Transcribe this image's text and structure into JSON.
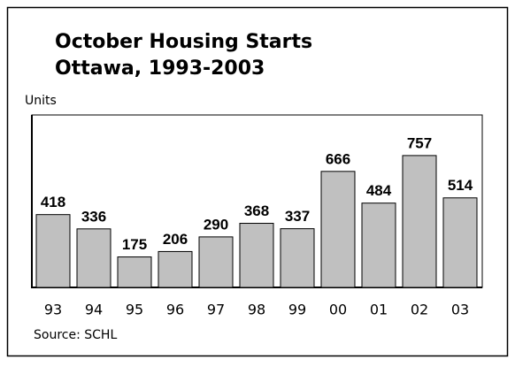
{
  "chart_data": {
    "type": "bar",
    "title": "October Housing Starts",
    "subtitle": "Ottawa, 1993-2003",
    "y_label": "Units",
    "source": "Source: SCHL",
    "categories": [
      "93",
      "94",
      "95",
      "96",
      "97",
      "98",
      "99",
      "00",
      "01",
      "02",
      "03"
    ],
    "values": [
      418,
      336,
      175,
      206,
      290,
      368,
      337,
      666,
      484,
      757,
      514
    ],
    "color": "#c0c0c0",
    "ylim": [
      0,
      990
    ]
  }
}
